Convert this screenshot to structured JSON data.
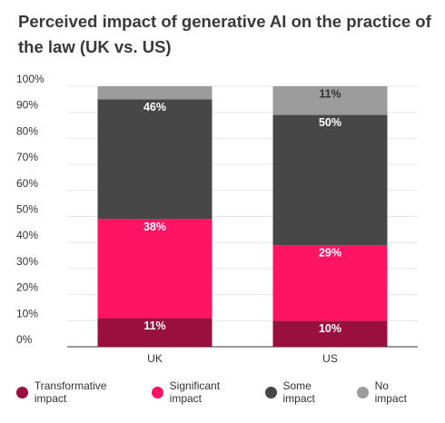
{
  "chart_data": {
    "type": "bar",
    "stacked": true,
    "title": "Perceived impact of generative AI on the practice of the law (UK vs. US)",
    "categories": [
      "UK",
      "US"
    ],
    "series": [
      {
        "name": "Transformative impact",
        "color": "#990F3D",
        "values": [
          11,
          10
        ],
        "labels": [
          "11%",
          "10%"
        ]
      },
      {
        "name": "Significant impact",
        "color": "#FF1464",
        "values": [
          38,
          29
        ],
        "labels": [
          "38%",
          "29%"
        ]
      },
      {
        "name": "Some impact",
        "color": "#474747",
        "values": [
          46,
          50
        ],
        "labels": [
          "46%",
          "50%"
        ]
      },
      {
        "name": "No impact",
        "color": "#9C9C9C",
        "values": [
          5,
          11
        ],
        "labels": [
          "",
          "11%"
        ]
      }
    ],
    "yticks": [
      "0%",
      "10%",
      "20%",
      "30%",
      "40%",
      "50%",
      "60%",
      "70%",
      "80%",
      "90%",
      "100%"
    ],
    "ylim": [
      0,
      100
    ],
    "grid": true,
    "legend_position": "bottom"
  }
}
